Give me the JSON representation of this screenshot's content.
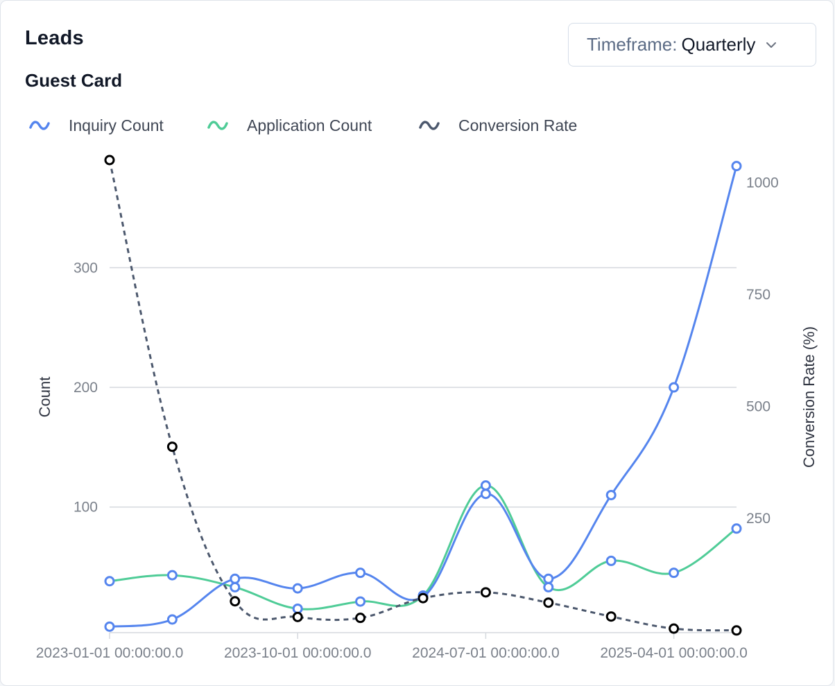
{
  "header": {
    "title": "Leads",
    "subtitle": "Guest Card",
    "timeframe_label": "Timeframe:",
    "timeframe_value": "Quarterly"
  },
  "colors": {
    "inquiry": "#5585ee",
    "application": "#4fcc97",
    "conversion": "#4c586d",
    "grid": "#d6d9de"
  },
  "chart_data": {
    "type": "line",
    "x": [
      "2023-01-01 00:00:00.0",
      "2023-04-01 00:00:00.0",
      "2023-07-01 00:00:00.0",
      "2023-10-01 00:00:00.0",
      "2024-01-01 00:00:00.0",
      "2024-04-01 00:00:00.0",
      "2024-07-01 00:00:00.0",
      "2024-10-01 00:00:00.0",
      "2025-01-01 00:00:00.0",
      "2025-04-01 00:00:00.0",
      "2025-07-01 00:00:00.0"
    ],
    "x_tick_labels": [
      "2023-01-01 00:00:00.0",
      "2023-10-01 00:00:00.0",
      "2024-07-01 00:00:00.0",
      "2025-04-01 00:00:00.0"
    ],
    "x_tick_indices": [
      0,
      3,
      6,
      9
    ],
    "series": [
      {
        "name": "Inquiry Count",
        "axis": "left",
        "style": "solid",
        "values": [
          0,
          6,
          40,
          32,
          45,
          25,
          111,
          40,
          110,
          200,
          385
        ]
      },
      {
        "name": "Application Count",
        "axis": "left",
        "style": "solid",
        "values": [
          38,
          43,
          33,
          15,
          21,
          26,
          118,
          33,
          55,
          45,
          82
        ]
      },
      {
        "name": "Conversion Rate",
        "axis": "right",
        "style": "dashed",
        "values": [
          1050,
          410,
          65,
          30,
          28,
          72,
          85,
          62,
          31,
          4,
          0
        ]
      }
    ],
    "left_axis": {
      "label": "Count",
      "ticks": [
        100,
        200,
        300
      ],
      "range": [
        -5,
        390
      ]
    },
    "right_axis": {
      "label": "Conversion Rate (%)",
      "ticks": [
        250,
        500,
        750,
        1000
      ],
      "range": [
        -5,
        1050
      ]
    },
    "legend_position": "top-left",
    "grid": "horizontal"
  }
}
